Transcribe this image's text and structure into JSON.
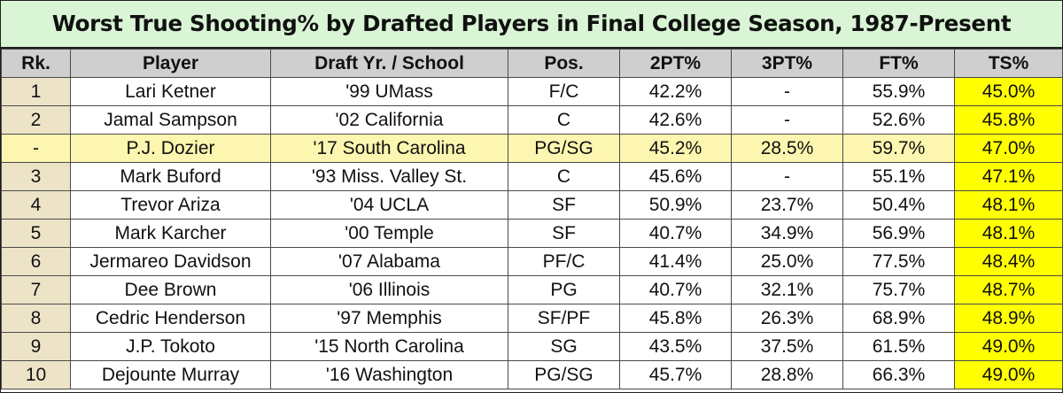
{
  "chart_data": {
    "type": "table",
    "title": "Worst True Shooting% by Drafted Players in Final College Season, 1987-Present",
    "columns": [
      "Rk.",
      "Player",
      "Draft Yr. / School",
      "Pos.",
      "2PT%",
      "3PT%",
      "FT%",
      "TS%"
    ],
    "rows": [
      [
        "1",
        "Lari Ketner",
        "'99 UMass",
        "F/C",
        "42.2%",
        "-",
        "55.9%",
        "45.0%"
      ],
      [
        "2",
        "Jamal Sampson",
        "'02 California",
        "C",
        "42.6%",
        "-",
        "52.6%",
        "45.8%"
      ],
      [
        "-",
        "P.J. Dozier",
        "'17 South Carolina",
        "PG/SG",
        "45.2%",
        "28.5%",
        "59.7%",
        "47.0%"
      ],
      [
        "3",
        "Mark Buford",
        "'93 Miss. Valley St.",
        "C",
        "45.6%",
        "-",
        "55.1%",
        "47.1%"
      ],
      [
        "4",
        "Trevor Ariza",
        "'04 UCLA",
        "SF",
        "50.9%",
        "23.7%",
        "50.4%",
        "48.1%"
      ],
      [
        "5",
        "Mark Karcher",
        "'00 Temple",
        "SF",
        "40.7%",
        "34.9%",
        "56.9%",
        "48.1%"
      ],
      [
        "6",
        "Jermareo Davidson",
        "'07 Alabama",
        "PF/C",
        "41.4%",
        "25.0%",
        "77.5%",
        "48.4%"
      ],
      [
        "7",
        "Dee Brown",
        "'06 Illinois",
        "PG",
        "40.7%",
        "32.1%",
        "75.7%",
        "48.7%"
      ],
      [
        "8",
        "Cedric Henderson",
        "'97 Memphis",
        "SF/PF",
        "45.8%",
        "26.3%",
        "68.9%",
        "48.9%"
      ],
      [
        "9",
        "J.P. Tokoto",
        "'15 North Carolina",
        "SG",
        "43.5%",
        "37.5%",
        "61.5%",
        "49.0%"
      ],
      [
        "10",
        "Dejounte Murray",
        "'16 Washington",
        "PG/SG",
        "45.7%",
        "28.8%",
        "66.3%",
        "49.0%"
      ]
    ],
    "highlight_row": 2,
    "colors": {
      "title_bg": "#d9f5d5",
      "header_bg": "#cfcfcf",
      "rank_bg": "#ede4c8",
      "highlight_row_bg": "#fdf6b0",
      "ts_bg": "#ffff00"
    }
  }
}
